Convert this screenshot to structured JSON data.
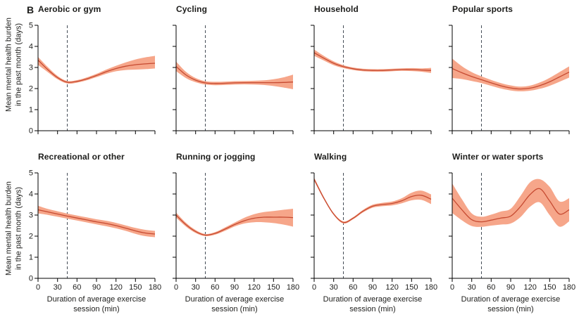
{
  "figure": {
    "panel_label": "B",
    "ylabel_line1": "Mean mental health burden",
    "ylabel_line2": "in the past month (days)",
    "xlabel_line1": "Duration of average exercise",
    "xlabel_line2": "session (min)",
    "colors": {
      "line": "#c64a31",
      "band": "#f6a68a",
      "vline": "#454d57",
      "axis": "#000000",
      "text": "#1d1d1b"
    }
  },
  "chart_data": [
    {
      "type": "line",
      "title": "Aerobic or gym",
      "x": [
        0,
        15,
        30,
        45,
        60,
        75,
        90,
        105,
        120,
        135,
        150,
        165,
        180
      ],
      "y": [
        3.35,
        2.9,
        2.52,
        2.3,
        2.34,
        2.46,
        2.62,
        2.8,
        2.95,
        3.06,
        3.13,
        3.17,
        3.2
      ],
      "y_lower": [
        3.12,
        2.78,
        2.44,
        2.24,
        2.28,
        2.39,
        2.54,
        2.7,
        2.82,
        2.88,
        2.9,
        2.92,
        2.95
      ],
      "y_upper": [
        3.5,
        3.02,
        2.6,
        2.36,
        2.4,
        2.53,
        2.7,
        2.9,
        3.08,
        3.24,
        3.38,
        3.48,
        3.55
      ],
      "vline_x": 45,
      "xlim": [
        0,
        180
      ],
      "ylim": [
        0,
        5
      ],
      "xticks": [
        0,
        30,
        60,
        90,
        120,
        150,
        180
      ],
      "yticks": [
        0,
        1,
        2,
        3,
        4,
        5
      ],
      "show_xtick_labels": false,
      "show_ytick_labels": true
    },
    {
      "type": "line",
      "title": "Cycling",
      "x": [
        0,
        15,
        30,
        45,
        60,
        75,
        90,
        105,
        120,
        135,
        150,
        165,
        180
      ],
      "y": [
        3.05,
        2.65,
        2.4,
        2.27,
        2.24,
        2.25,
        2.27,
        2.28,
        2.28,
        2.28,
        2.28,
        2.29,
        2.31
      ],
      "y_lower": [
        2.83,
        2.5,
        2.3,
        2.19,
        2.16,
        2.17,
        2.19,
        2.2,
        2.19,
        2.17,
        2.12,
        2.05,
        1.97
      ],
      "y_upper": [
        3.28,
        2.8,
        2.5,
        2.35,
        2.32,
        2.33,
        2.35,
        2.36,
        2.37,
        2.39,
        2.44,
        2.53,
        2.66
      ],
      "vline_x": 45,
      "xlim": [
        0,
        180
      ],
      "ylim": [
        0,
        5
      ],
      "xticks": [
        0,
        30,
        60,
        90,
        120,
        150,
        180
      ],
      "yticks": [
        0,
        1,
        2,
        3,
        4,
        5
      ],
      "show_xtick_labels": false,
      "show_ytick_labels": false
    },
    {
      "type": "line",
      "title": "Household",
      "x": [
        0,
        15,
        30,
        45,
        60,
        75,
        90,
        105,
        120,
        135,
        150,
        165,
        180
      ],
      "y": [
        3.7,
        3.44,
        3.2,
        3.04,
        2.94,
        2.88,
        2.86,
        2.86,
        2.88,
        2.9,
        2.9,
        2.88,
        2.86
      ],
      "y_lower": [
        3.55,
        3.33,
        3.11,
        2.97,
        2.88,
        2.82,
        2.8,
        2.8,
        2.82,
        2.84,
        2.83,
        2.8,
        2.74
      ],
      "y_upper": [
        3.85,
        3.55,
        3.29,
        3.11,
        3.0,
        2.94,
        2.92,
        2.92,
        2.94,
        2.96,
        2.97,
        2.96,
        2.98
      ],
      "vline_x": 45,
      "xlim": [
        0,
        180
      ],
      "ylim": [
        0,
        5
      ],
      "xticks": [
        0,
        30,
        60,
        90,
        120,
        150,
        180
      ],
      "yticks": [
        0,
        1,
        2,
        3,
        4,
        5
      ],
      "show_xtick_labels": false,
      "show_ytick_labels": false
    },
    {
      "type": "line",
      "title": "Popular sports",
      "x": [
        0,
        15,
        30,
        45,
        60,
        75,
        90,
        105,
        120,
        135,
        150,
        165,
        180
      ],
      "y": [
        2.95,
        2.75,
        2.57,
        2.42,
        2.27,
        2.13,
        2.03,
        1.98,
        2.02,
        2.14,
        2.32,
        2.55,
        2.78
      ],
      "y_lower": [
        2.5,
        2.45,
        2.36,
        2.26,
        2.13,
        2.0,
        1.91,
        1.87,
        1.9,
        1.99,
        2.13,
        2.32,
        2.52
      ],
      "y_upper": [
        3.42,
        3.06,
        2.78,
        2.58,
        2.41,
        2.26,
        2.15,
        2.09,
        2.14,
        2.29,
        2.51,
        2.78,
        3.05
      ],
      "vline_x": 45,
      "xlim": [
        0,
        180
      ],
      "ylim": [
        0,
        5
      ],
      "xticks": [
        0,
        30,
        60,
        90,
        120,
        150,
        180
      ],
      "yticks": [
        0,
        1,
        2,
        3,
        4,
        5
      ],
      "show_xtick_labels": false,
      "show_ytick_labels": false
    },
    {
      "type": "line",
      "title": "Recreational or other",
      "x": [
        0,
        15,
        30,
        45,
        60,
        75,
        90,
        105,
        120,
        135,
        150,
        165,
        180
      ],
      "y": [
        3.25,
        3.15,
        3.05,
        2.95,
        2.86,
        2.77,
        2.68,
        2.6,
        2.5,
        2.38,
        2.25,
        2.15,
        2.1
      ],
      "y_lower": [
        3.08,
        3.01,
        2.92,
        2.83,
        2.74,
        2.65,
        2.56,
        2.47,
        2.37,
        2.25,
        2.11,
        2.0,
        1.95
      ],
      "y_upper": [
        3.44,
        3.29,
        3.18,
        3.07,
        2.98,
        2.89,
        2.8,
        2.73,
        2.63,
        2.51,
        2.39,
        2.3,
        2.25
      ],
      "vline_x": 45,
      "xlim": [
        0,
        180
      ],
      "ylim": [
        0,
        5
      ],
      "xticks": [
        0,
        30,
        60,
        90,
        120,
        150,
        180
      ],
      "yticks": [
        0,
        1,
        2,
        3,
        4,
        5
      ],
      "show_xtick_labels": true,
      "show_ytick_labels": true
    },
    {
      "type": "line",
      "title": "Running or jogging",
      "x": [
        0,
        15,
        30,
        45,
        60,
        75,
        90,
        105,
        120,
        135,
        150,
        165,
        180
      ],
      "y": [
        3.0,
        2.55,
        2.22,
        2.05,
        2.13,
        2.33,
        2.55,
        2.73,
        2.85,
        2.9,
        2.9,
        2.9,
        2.88
      ],
      "y_lower": [
        2.88,
        2.46,
        2.15,
        2.0,
        2.07,
        2.25,
        2.46,
        2.6,
        2.66,
        2.66,
        2.62,
        2.55,
        2.45
      ],
      "y_upper": [
        3.12,
        2.64,
        2.29,
        2.1,
        2.19,
        2.41,
        2.64,
        2.87,
        3.04,
        3.14,
        3.19,
        3.25,
        3.3
      ],
      "vline_x": 45,
      "xlim": [
        0,
        180
      ],
      "ylim": [
        0,
        5
      ],
      "xticks": [
        0,
        30,
        60,
        90,
        120,
        150,
        180
      ],
      "yticks": [
        0,
        1,
        2,
        3,
        4,
        5
      ],
      "show_xtick_labels": true,
      "show_ytick_labels": false
    },
    {
      "type": "line",
      "title": "Walking",
      "x": [
        0,
        15,
        30,
        45,
        60,
        75,
        90,
        105,
        120,
        135,
        150,
        165,
        180
      ],
      "y": [
        4.7,
        3.8,
        3.05,
        2.65,
        2.85,
        3.18,
        3.42,
        3.5,
        3.55,
        3.68,
        3.88,
        3.94,
        3.75
      ],
      "y_lower": [
        4.62,
        3.74,
        3.0,
        2.6,
        2.8,
        3.12,
        3.35,
        3.42,
        3.46,
        3.56,
        3.7,
        3.72,
        3.52
      ],
      "y_upper": [
        4.78,
        3.86,
        3.1,
        2.7,
        2.9,
        3.24,
        3.49,
        3.58,
        3.64,
        3.8,
        4.06,
        4.16,
        3.98
      ],
      "vline_x": 45,
      "xlim": [
        0,
        180
      ],
      "ylim": [
        0,
        5
      ],
      "xticks": [
        0,
        30,
        60,
        90,
        120,
        150,
        180
      ],
      "yticks": [
        0,
        1,
        2,
        3,
        4,
        5
      ],
      "show_xtick_labels": true,
      "show_ytick_labels": false
    },
    {
      "type": "line",
      "title": "Winter or water sports",
      "x": [
        0,
        15,
        30,
        45,
        60,
        75,
        90,
        105,
        120,
        135,
        150,
        165,
        180
      ],
      "y": [
        3.8,
        3.25,
        2.78,
        2.68,
        2.76,
        2.86,
        2.95,
        3.4,
        3.98,
        4.25,
        3.67,
        3.05,
        3.25
      ],
      "y_lower": [
        3.1,
        2.75,
        2.48,
        2.44,
        2.5,
        2.55,
        2.6,
        2.9,
        3.4,
        3.6,
        3.0,
        2.45,
        2.7
      ],
      "y_upper": [
        4.5,
        3.75,
        3.08,
        2.92,
        3.02,
        3.17,
        3.3,
        3.9,
        4.56,
        4.7,
        4.34,
        3.65,
        3.8
      ],
      "vline_x": 45,
      "xlim": [
        0,
        180
      ],
      "ylim": [
        0,
        5
      ],
      "xticks": [
        0,
        30,
        60,
        90,
        120,
        150,
        180
      ],
      "yticks": [
        0,
        1,
        2,
        3,
        4,
        5
      ],
      "show_xtick_labels": true,
      "show_ytick_labels": false
    }
  ]
}
